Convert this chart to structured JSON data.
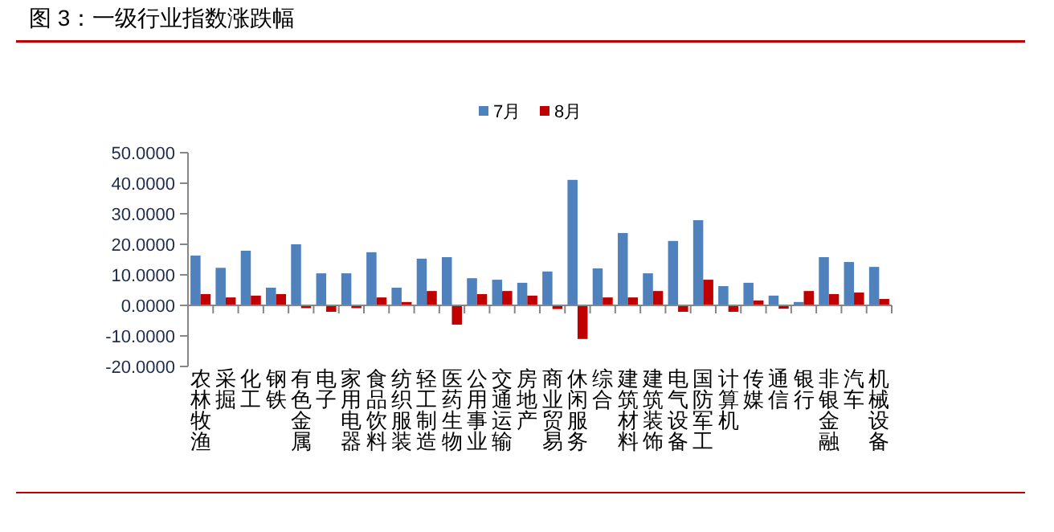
{
  "chart_data": {
    "type": "bar",
    "title": "图 3：一级行业指数涨跌幅",
    "categories": [
      "农林牧渔",
      "采掘",
      "化工",
      "钢铁",
      "有色金属",
      "电子",
      "家用电器",
      "食品饮料",
      "纺织服装",
      "轻工制造",
      "医药生物",
      "公用事业",
      "交通运输",
      "房地产",
      "商业贸易",
      "休闲服务",
      "综合",
      "建筑材料",
      "建筑装饰",
      "电气设备",
      "国防军工",
      "计算机",
      "传媒",
      "通信",
      "银行",
      "非银金融",
      "汽车",
      "机械设备"
    ],
    "series": [
      {
        "name": "7月",
        "color": "#4f81bd",
        "values": [
          16.3,
          12.3,
          17.9,
          5.8,
          20.0,
          10.5,
          10.5,
          17.4,
          5.8,
          15.3,
          15.8,
          8.9,
          8.4,
          7.4,
          11.1,
          41.1,
          12.1,
          23.7,
          10.5,
          21.1,
          27.9,
          6.3,
          7.4,
          3.2,
          1.1,
          15.8,
          14.2,
          12.6
        ]
      },
      {
        "name": "8月",
        "color": "#c00000",
        "values": [
          3.7,
          2.6,
          3.2,
          3.7,
          -0.9,
          -2.1,
          -0.9,
          2.6,
          1.1,
          4.7,
          -6.3,
          3.7,
          4.7,
          3.2,
          -1.2,
          -11.0,
          2.6,
          2.6,
          4.7,
          -2.1,
          8.4,
          -2.1,
          1.6,
          -1.1,
          4.7,
          3.7,
          4.2,
          2.1
        ]
      }
    ],
    "ylim": [
      -20,
      50
    ],
    "yticks": [
      {
        "value": -20,
        "label": "-20.0000"
      },
      {
        "value": -10,
        "label": "-10.0000"
      },
      {
        "value": 0,
        "label": "0.0000"
      },
      {
        "value": 10,
        "label": "10.0000"
      },
      {
        "value": 20,
        "label": "20.0000"
      },
      {
        "value": 30,
        "label": "30.0000"
      },
      {
        "value": 40,
        "label": "40.0000"
      },
      {
        "value": 50,
        "label": "50.0000"
      }
    ],
    "legend": "top"
  }
}
